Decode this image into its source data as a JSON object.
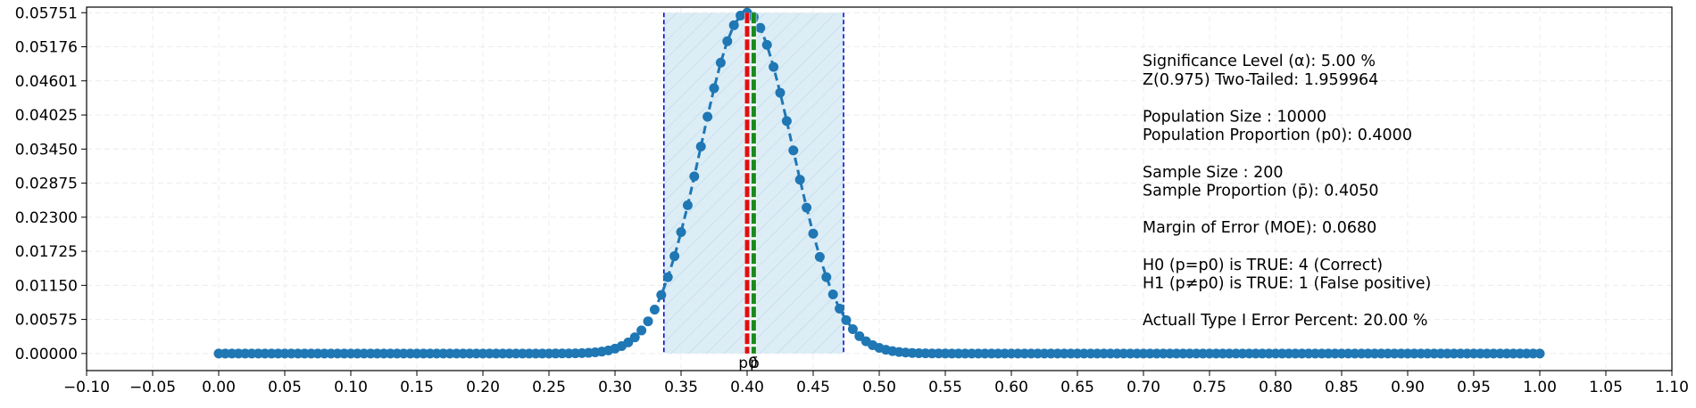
{
  "chart_data": {
    "type": "line",
    "title": "",
    "xlabel": "",
    "ylabel": "",
    "xlim": [
      -0.1,
      1.1
    ],
    "ylim": [
      -0.00288,
      0.05845
    ],
    "grid": true,
    "x_ticks": [
      "−0.10",
      "−0.05",
      "0.00",
      "0.05",
      "0.10",
      "0.15",
      "0.20",
      "0.25",
      "0.30",
      "0.35",
      "0.40",
      "0.45",
      "0.50",
      "0.55",
      "0.60",
      "0.65",
      "0.70",
      "0.75",
      "0.80",
      "0.85",
      "0.90",
      "0.95",
      "1.00",
      "1.05",
      "1.10"
    ],
    "x_tick_values": [
      -0.1,
      -0.05,
      0.0,
      0.05,
      0.1,
      0.15,
      0.2,
      0.25,
      0.3,
      0.35,
      0.4,
      0.45,
      0.5,
      0.55,
      0.6,
      0.65,
      0.7,
      0.75,
      0.8,
      0.85,
      0.9,
      0.95,
      1.0,
      1.05,
      1.1
    ],
    "y_ticks": [
      "0.00000",
      "0.00575",
      "0.01150",
      "0.01725",
      "0.02300",
      "0.02875",
      "0.03450",
      "0.04025",
      "0.04601",
      "0.05176",
      "0.05751"
    ],
    "y_tick_values": [
      0.0,
      0.00575,
      0.0115,
      0.01725,
      0.023,
      0.02875,
      0.0345,
      0.04025,
      0.04601,
      0.05176,
      0.05751
    ],
    "series": [
      {
        "x_start": 0.0,
        "x_step": 0.005,
        "distribution": "binomial pmf, n = 200, p = 0.4",
        "color": "#1f77b4",
        "style": "dashed line with circle markers"
      }
    ],
    "shaded_region": {
      "x0": 0.337,
      "x1": 0.473,
      "color": "#d6eaf5",
      "hatch": true,
      "edge_color": "#0000cc"
    },
    "vlines": [
      {
        "x": 0.4,
        "color": "#e01010",
        "label": "p0"
      },
      {
        "x": 0.405,
        "color": "#1a8a1a",
        "label": "p̄"
      }
    ],
    "annotations": [
      "Significance Level (α): 5.00 %",
      "Z(0.975) Two-Tailed: 1.959964",
      "",
      "Population Size : 10000",
      "Population Proportion (p0): 0.4000",
      "",
      "Sample Size : 200",
      "Sample Proportion (p̄): 0.4050",
      "",
      "Margin of Error (MOE): 0.0680",
      "",
      "H0 (p=p0) is TRUE: 4 (Correct)",
      "H1 (p≠p0) is TRUE: 1 (False positive)",
      "",
      "Actuall Type I Error Percent: 20.00 %"
    ]
  }
}
